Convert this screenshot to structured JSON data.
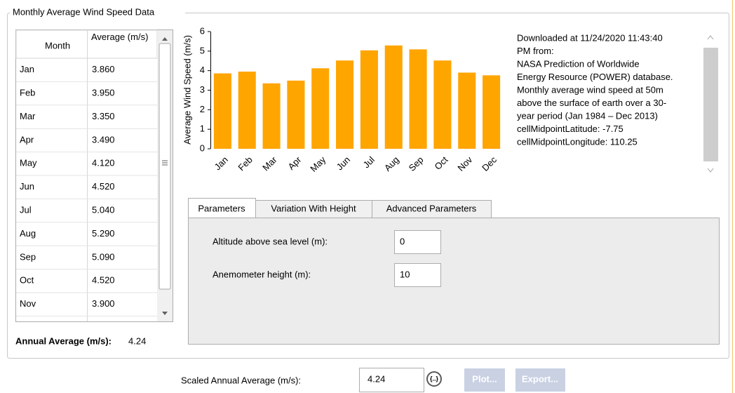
{
  "group_title": "Monthly Average Wind Speed Data",
  "table": {
    "headers": [
      "Month",
      "Average (m/s)"
    ],
    "rows": [
      [
        "Jan",
        "3.860"
      ],
      [
        "Feb",
        "3.950"
      ],
      [
        "Mar",
        "3.350"
      ],
      [
        "Apr",
        "3.490"
      ],
      [
        "May",
        "4.120"
      ],
      [
        "Jun",
        "4.520"
      ],
      [
        "Jul",
        "5.040"
      ],
      [
        "Aug",
        "5.290"
      ],
      [
        "Sep",
        "5.090"
      ],
      [
        "Oct",
        "4.520"
      ],
      [
        "Nov",
        "3.900"
      ]
    ]
  },
  "annual_average": {
    "label": "Annual Average (m/s):",
    "value": "4.24"
  },
  "chart": {
    "type": "bar",
    "y_label": "Average Wind Speed (m/s)",
    "categories": [
      "Jan",
      "Feb",
      "Mar",
      "Apr",
      "May",
      "Jun",
      "Jul",
      "Aug",
      "Sep",
      "Oct",
      "Nov",
      "Dec"
    ],
    "values": [
      3.86,
      3.95,
      3.35,
      3.49,
      4.12,
      4.52,
      5.04,
      5.29,
      5.09,
      4.52,
      3.9,
      3.76
    ],
    "color": "#ffa500",
    "ylim": [
      0,
      6
    ],
    "yticks": [
      0,
      1,
      2,
      3,
      4,
      5,
      6
    ]
  },
  "info_lines": [
    "Downloaded at 11/24/2020 11:43:40",
    "PM from:",
    "NASA Prediction of Worldwide",
    "Energy Resource (POWER)  database.",
    "Monthly average wind speed at 50m",
    "above the surface of earth over a 30-",
    "year period (Jan 1984 – Dec 2013)",
    "cellMidpointLatitude: -7.75",
    "cellMidpointLongitude: 110.25"
  ],
  "tabs": [
    "Parameters",
    "Variation With Height",
    "Advanced Parameters"
  ],
  "fields": [
    {
      "label": "Altitude above sea level (m):",
      "value": "0"
    },
    {
      "label": "Anemometer height (m):",
      "value": "10"
    }
  ],
  "scaled": {
    "label": "Scaled Annual Average (m/s):",
    "value": "4.24",
    "icon": "{..}"
  },
  "buttons": [
    "Plot...",
    "Export..."
  ]
}
